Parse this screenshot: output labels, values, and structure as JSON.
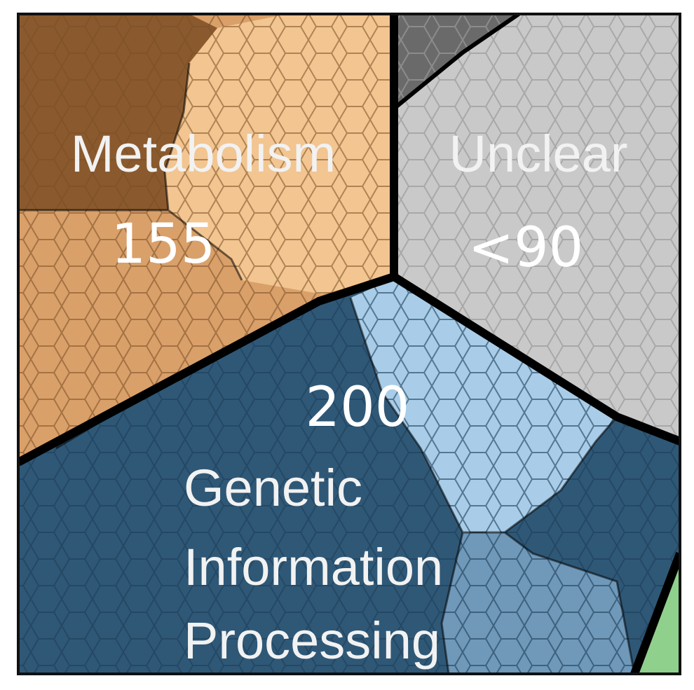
{
  "chart_data": {
    "type": "voronoi-treemap",
    "cells": [
      {
        "name": "Metabolism",
        "label_lines": [
          "Metabolism"
        ],
        "value_text": "155",
        "value": 155,
        "colors": {
          "base": "#8a5a2e",
          "light": "#f2c591",
          "mid": "#d9a06a"
        }
      },
      {
        "name": "Unclear",
        "label_lines": [
          "Unclear"
        ],
        "value_text": "<90",
        "value": 90,
        "colors": {
          "base": "#c9c9c9",
          "light": "#d2d2d2",
          "dark": "#6a6a6a"
        }
      },
      {
        "name": "Genetic Information Processing",
        "label_lines": [
          "Genetic",
          "Information",
          "Processing"
        ],
        "value_text": "200",
        "value": 200,
        "colors": {
          "base": "#2f5877",
          "light": "#a9cde8",
          "mid": "#6f98b9"
        }
      },
      {
        "name": "",
        "label_lines": [],
        "value_text": "",
        "colors": {
          "base": "#8fd08d"
        }
      }
    ]
  }
}
